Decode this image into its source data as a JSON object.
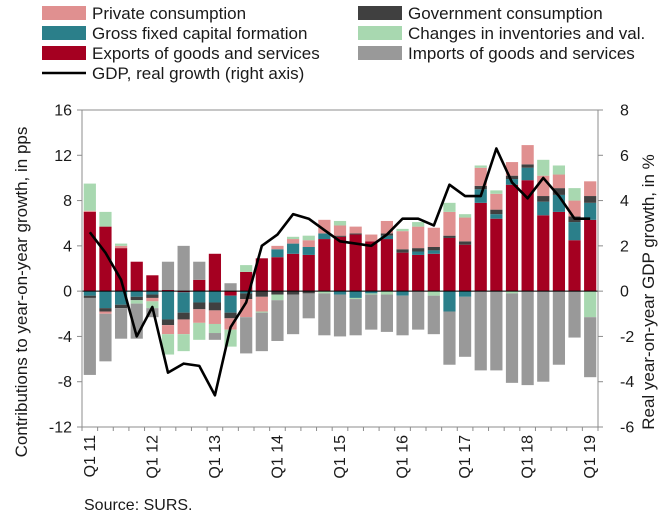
{
  "chart_data": {
    "type": "bar",
    "stacked": true,
    "title": "",
    "left_axis": {
      "label": "Contributions to year-on-year growth, in pps",
      "ylim": [
        -12,
        16
      ],
      "ticks": [
        -12,
        -8,
        -4,
        0,
        4,
        8,
        12,
        16
      ]
    },
    "right_axis": {
      "label": "Real year-on-year GDP growth, in %",
      "ylim": [
        -6,
        8
      ],
      "ticks": [
        -6,
        -4,
        -2,
        0,
        2,
        4,
        6,
        8
      ]
    },
    "x_tick_labels": [
      "Q1 11",
      "Q1 12",
      "Q1 13",
      "Q1 14",
      "Q1 15",
      "Q1 16",
      "Q1 17",
      "Q1 18",
      "Q1 19"
    ],
    "x_tick_index": [
      0,
      4,
      8,
      12,
      16,
      20,
      24,
      28,
      32
    ],
    "categories": [
      "Q1 11",
      "Q2 11",
      "Q3 11",
      "Q4 11",
      "Q1 12",
      "Q2 12",
      "Q3 12",
      "Q4 12",
      "Q1 13",
      "Q2 13",
      "Q3 13",
      "Q4 13",
      "Q1 14",
      "Q2 14",
      "Q3 14",
      "Q4 14",
      "Q1 15",
      "Q2 15",
      "Q3 15",
      "Q4 15",
      "Q1 16",
      "Q2 16",
      "Q3 16",
      "Q4 16",
      "Q1 17",
      "Q2 17",
      "Q3 17",
      "Q4 17",
      "Q1 18",
      "Q2 18",
      "Q3 18",
      "Q4 18",
      "Q1 19"
    ],
    "grid": false,
    "legend_position": "top",
    "series": [
      {
        "name": "Exports of goods and services",
        "color": "#a50021",
        "values": [
          7.0,
          5.7,
          3.8,
          2.6,
          1.4,
          0.1,
          -0.1,
          1.0,
          3.3,
          -0.4,
          1.7,
          2.9,
          3.0,
          3.3,
          3.2,
          4.6,
          4.8,
          5.0,
          4.4,
          4.6,
          3.4,
          3.2,
          3.3,
          4.7,
          4.1,
          7.8,
          6.4,
          9.4,
          9.8,
          6.7,
          7.0,
          4.5,
          6.3
        ]
      },
      {
        "name": "Gross fixed capital formation",
        "color": "#2b7f8a",
        "values": [
          -0.4,
          -1.5,
          -1.2,
          -0.5,
          -0.3,
          -2.5,
          -1.8,
          -1.0,
          -1.0,
          -1.5,
          -0.2,
          0.0,
          0.7,
          0.9,
          0.7,
          0.5,
          -0.3,
          -0.6,
          -0.2,
          0.3,
          -0.4,
          0.3,
          0.3,
          -1.8,
          -0.5,
          1.2,
          0.4,
          0.5,
          1.1,
          1.2,
          1.5,
          1.6,
          1.5
        ]
      },
      {
        "name": "Government consumption",
        "color": "#404040",
        "values": [
          -0.2,
          -0.3,
          -0.3,
          -0.3,
          -0.3,
          -0.5,
          -0.6,
          -0.6,
          -0.7,
          -0.5,
          -0.5,
          -0.5,
          -0.3,
          -0.3,
          -0.2,
          0.0,
          0.1,
          0.1,
          0.0,
          0.2,
          0.3,
          0.3,
          0.3,
          0.2,
          0.3,
          0.3,
          0.4,
          0.3,
          0.3,
          0.5,
          0.6,
          0.5,
          0.6
        ]
      },
      {
        "name": "Private consumption",
        "color": "#e09090",
        "values": [
          0.1,
          -0.2,
          0.2,
          0.0,
          -0.3,
          -0.8,
          -1.3,
          -1.2,
          -1.2,
          -1.0,
          -1.6,
          -1.3,
          0.3,
          0.4,
          0.6,
          1.2,
          0.9,
          0.6,
          0.6,
          1.1,
          1.6,
          1.9,
          1.7,
          2.1,
          2.1,
          1.6,
          1.4,
          1.2,
          1.7,
          1.8,
          1.2,
          1.4,
          1.3
        ]
      },
      {
        "name": "Changes in inventories and val.",
        "color": "#a8d8b0",
        "values": [
          2.4,
          1.3,
          0.2,
          -0.3,
          -0.6,
          -1.8,
          -1.5,
          -1.5,
          -0.8,
          -1.5,
          0.6,
          -0.1,
          -0.5,
          0.2,
          0.4,
          -0.2,
          0.4,
          -0.1,
          -0.1,
          -0.3,
          0.2,
          0.4,
          -0.4,
          0.8,
          0.3,
          0.2,
          0.3,
          -0.2,
          0.0,
          1.4,
          0.8,
          1.1,
          -2.3
        ]
      },
      {
        "name": "Imports of goods and services",
        "color": "#999999",
        "values": [
          -6.8,
          -4.2,
          -2.7,
          -3.1,
          -0.8,
          2.5,
          4.0,
          1.6,
          -0.6,
          0.7,
          -3.2,
          -3.4,
          -3.6,
          -3.5,
          -2.2,
          -3.7,
          -3.7,
          -3.2,
          -3.1,
          -3.3,
          -3.5,
          -3.4,
          -3.4,
          -4.7,
          -5.3,
          -7.0,
          -7.0,
          -7.9,
          -8.3,
          -8.0,
          -6.5,
          -4.1,
          -5.3
        ]
      }
    ],
    "line_series": {
      "name": "GDP, real growth (right axis)",
      "color": "#000000",
      "axis": "right",
      "values": [
        2.6,
        1.7,
        0.5,
        -2.0,
        -0.7,
        -3.6,
        -3.2,
        -3.3,
        -4.6,
        -1.6,
        -0.5,
        2.0,
        2.5,
        3.4,
        3.2,
        2.7,
        2.2,
        2.1,
        2.0,
        2.5,
        3.2,
        3.2,
        2.9,
        4.7,
        4.2,
        4.2,
        6.3,
        4.8,
        4.1,
        5.0,
        4.2,
        3.2,
        3.2
      ]
    },
    "legend_left": [
      {
        "name": "Private consumption",
        "color": "#e09090",
        "kind": "box"
      },
      {
        "name": "Gross fixed capital formation",
        "color": "#2b7f8a",
        "kind": "box"
      },
      {
        "name": "Exports of goods and services",
        "color": "#a50021",
        "kind": "box"
      },
      {
        "name": "GDP, real growth (right axis)",
        "color": "#000000",
        "kind": "line"
      }
    ],
    "legend_right": [
      {
        "name": "Government consumption",
        "color": "#404040",
        "kind": "box"
      },
      {
        "name": "Changes in inventories and val.",
        "color": "#a8d8b0",
        "kind": "box"
      },
      {
        "name": "Imports of goods and services",
        "color": "#999999",
        "kind": "box"
      }
    ],
    "source": "Source: SURS."
  }
}
